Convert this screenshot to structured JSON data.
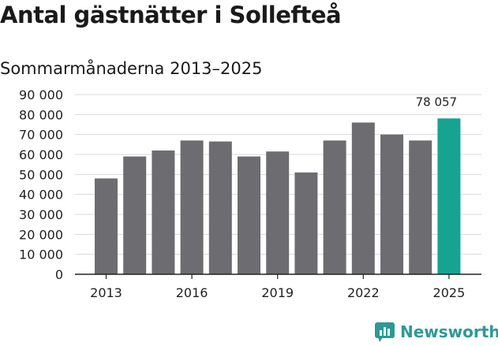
{
  "title": "Antal gästnätter i Sollefteå",
  "subtitle": "Sommarmånaderna 2013–2025",
  "brand": "Newsworthy",
  "colors": {
    "bar": "#6d6c70",
    "highlight": "#16a392",
    "grid": "#d9d9d9",
    "brand": "#2b9a93"
  },
  "chart_data": {
    "type": "bar",
    "categories": [
      "2013",
      "2014",
      "2015",
      "2016",
      "2017",
      "2018",
      "2019",
      "2020",
      "2021",
      "2022",
      "2023",
      "2024",
      "2025"
    ],
    "values": [
      48000,
      59000,
      62000,
      67000,
      66500,
      59000,
      61500,
      51000,
      67000,
      76000,
      70000,
      67000,
      78057
    ],
    "highlight_index": 12,
    "annotation": {
      "index": 12,
      "text": "78 057"
    },
    "x_tick_labels": [
      "2013",
      "2016",
      "2019",
      "2022",
      "2025"
    ],
    "y_ticks": [
      0,
      10000,
      20000,
      30000,
      40000,
      50000,
      60000,
      70000,
      80000,
      90000
    ],
    "y_tick_labels": [
      "0",
      "10 000",
      "20 000",
      "30 000",
      "40 000",
      "50 000",
      "60 000",
      "70 000",
      "80 000",
      "90 000"
    ],
    "ylim": [
      0,
      90000
    ],
    "xlabel": "",
    "ylabel": "",
    "grid": true,
    "legend": "none"
  }
}
